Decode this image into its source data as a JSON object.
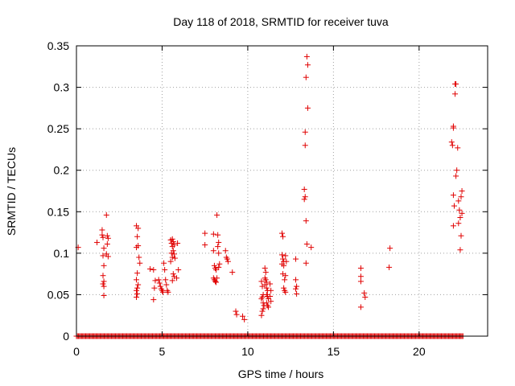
{
  "chart_data": {
    "type": "scatter",
    "title": "Day 118 of 2018, SRMTID for receiver tuva",
    "xlabel": "GPS time / hours",
    "ylabel": "SRMTID / TECUs",
    "xlim": [
      0,
      24
    ],
    "ylim": [
      0,
      0.35
    ],
    "xticks": [
      0,
      5,
      10,
      15,
      20
    ],
    "yticks": [
      0,
      0.05,
      0.1,
      0.15,
      0.2,
      0.25,
      0.3,
      0.35
    ],
    "ytick_labels": [
      "0",
      "0.05",
      "0.1",
      "0.15",
      "0.2",
      "0.25",
      "0.3",
      "0.35"
    ],
    "grid": true,
    "marker": "+",
    "color": "#e00000",
    "baseline": {
      "from": 0.0,
      "to": 22.6,
      "step": 0.06,
      "y": 0
    },
    "points": [
      [
        0.1,
        0.107
      ],
      [
        1.2,
        0.113
      ],
      [
        1.5,
        0.128
      ],
      [
        1.5,
        0.122
      ],
      [
        1.55,
        0.119
      ],
      [
        1.6,
        0.106
      ],
      [
        1.55,
        0.097
      ],
      [
        1.6,
        0.085
      ],
      [
        1.55,
        0.073
      ],
      [
        1.6,
        0.066
      ],
      [
        1.55,
        0.063
      ],
      [
        1.6,
        0.06
      ],
      [
        1.6,
        0.049
      ],
      [
        1.75,
        0.146
      ],
      [
        1.8,
        0.121
      ],
      [
        1.85,
        0.118
      ],
      [
        1.8,
        0.111
      ],
      [
        1.75,
        0.099
      ],
      [
        1.85,
        0.096
      ],
      [
        3.5,
        0.133
      ],
      [
        3.6,
        0.13
      ],
      [
        3.55,
        0.12
      ],
      [
        3.6,
        0.109
      ],
      [
        3.5,
        0.107
      ],
      [
        3.65,
        0.095
      ],
      [
        3.7,
        0.088
      ],
      [
        3.55,
        0.076
      ],
      [
        3.5,
        0.068
      ],
      [
        3.6,
        0.062
      ],
      [
        3.55,
        0.058
      ],
      [
        3.5,
        0.055
      ],
      [
        3.55,
        0.051
      ],
      [
        3.5,
        0.047
      ],
      [
        4.3,
        0.081
      ],
      [
        4.5,
        0.08
      ],
      [
        4.6,
        0.067
      ],
      [
        4.55,
        0.058
      ],
      [
        4.5,
        0.044
      ],
      [
        4.8,
        0.068
      ],
      [
        4.85,
        0.064
      ],
      [
        4.9,
        0.06
      ],
      [
        4.95,
        0.057
      ],
      [
        5.0,
        0.055
      ],
      [
        5.05,
        0.053
      ],
      [
        5.1,
        0.088
      ],
      [
        5.15,
        0.08
      ],
      [
        5.2,
        0.068
      ],
      [
        5.25,
        0.062
      ],
      [
        5.3,
        0.055
      ],
      [
        5.35,
        0.053
      ],
      [
        5.5,
        0.116
      ],
      [
        5.55,
        0.112
      ],
      [
        5.6,
        0.108
      ],
      [
        5.55,
        0.1
      ],
      [
        5.6,
        0.095
      ],
      [
        5.5,
        0.09
      ],
      [
        5.65,
        0.075
      ],
      [
        5.7,
        0.072
      ],
      [
        5.6,
        0.067
      ],
      [
        5.6,
        0.117
      ],
      [
        5.65,
        0.114
      ],
      [
        5.7,
        0.11
      ],
      [
        5.65,
        0.103
      ],
      [
        5.7,
        0.099
      ],
      [
        5.75,
        0.094
      ],
      [
        5.9,
        0.112
      ],
      [
        5.95,
        0.08
      ],
      [
        5.85,
        0.07
      ],
      [
        7.5,
        0.124
      ],
      [
        7.5,
        0.11
      ],
      [
        8.0,
        0.123
      ],
      [
        8.0,
        0.103
      ],
      [
        8.05,
        0.085
      ],
      [
        8.1,
        0.082
      ],
      [
        8.15,
        0.08
      ],
      [
        8.0,
        0.07
      ],
      [
        8.05,
        0.068
      ],
      [
        8.1,
        0.066
      ],
      [
        8.15,
        0.065
      ],
      [
        8.2,
        0.07
      ],
      [
        8.2,
        0.146
      ],
      [
        8.25,
        0.122
      ],
      [
        8.3,
        0.113
      ],
      [
        8.25,
        0.108
      ],
      [
        8.3,
        0.1
      ],
      [
        8.35,
        0.087
      ],
      [
        8.3,
        0.083
      ],
      [
        8.7,
        0.103
      ],
      [
        8.75,
        0.095
      ],
      [
        8.8,
        0.093
      ],
      [
        8.85,
        0.09
      ],
      [
        9.1,
        0.077
      ],
      [
        9.3,
        0.03
      ],
      [
        9.35,
        0.026
      ],
      [
        9.7,
        0.024
      ],
      [
        9.8,
        0.02
      ],
      [
        10.8,
        0.066
      ],
      [
        10.85,
        0.06
      ],
      [
        10.9,
        0.05
      ],
      [
        10.85,
        0.047
      ],
      [
        10.8,
        0.045
      ],
      [
        10.9,
        0.04
      ],
      [
        10.95,
        0.037
      ],
      [
        10.9,
        0.033
      ],
      [
        10.85,
        0.03
      ],
      [
        10.8,
        0.025
      ],
      [
        11.0,
        0.082
      ],
      [
        11.05,
        0.077
      ],
      [
        11.0,
        0.07
      ],
      [
        11.05,
        0.068
      ],
      [
        11.1,
        0.065
      ],
      [
        11.0,
        0.062
      ],
      [
        11.1,
        0.058
      ],
      [
        11.15,
        0.055
      ],
      [
        11.1,
        0.05
      ],
      [
        11.15,
        0.048
      ],
      [
        11.2,
        0.045
      ],
      [
        11.1,
        0.04
      ],
      [
        11.15,
        0.037
      ],
      [
        11.2,
        0.035
      ],
      [
        11.3,
        0.063
      ],
      [
        11.35,
        0.055
      ],
      [
        11.3,
        0.048
      ],
      [
        11.35,
        0.042
      ],
      [
        12.0,
        0.124
      ],
      [
        12.05,
        0.12
      ],
      [
        12.0,
        0.098
      ],
      [
        12.05,
        0.093
      ],
      [
        12.1,
        0.09
      ],
      [
        12.0,
        0.087
      ],
      [
        12.1,
        0.085
      ],
      [
        12.05,
        0.075
      ],
      [
        12.15,
        0.068
      ],
      [
        12.1,
        0.058
      ],
      [
        12.15,
        0.055
      ],
      [
        12.2,
        0.053
      ],
      [
        12.2,
        0.097
      ],
      [
        12.25,
        0.09
      ],
      [
        12.2,
        0.073
      ],
      [
        12.8,
        0.093
      ],
      [
        12.8,
        0.068
      ],
      [
        12.85,
        0.06
      ],
      [
        12.8,
        0.057
      ],
      [
        12.85,
        0.051
      ],
      [
        13.3,
        0.177
      ],
      [
        13.35,
        0.168
      ],
      [
        13.3,
        0.165
      ],
      [
        13.4,
        0.139
      ],
      [
        13.35,
        0.246
      ],
      [
        13.35,
        0.23
      ],
      [
        13.45,
        0.337
      ],
      [
        13.5,
        0.327
      ],
      [
        13.4,
        0.312
      ],
      [
        13.5,
        0.275
      ],
      [
        13.45,
        0.111
      ],
      [
        13.4,
        0.088
      ],
      [
        13.7,
        0.107
      ],
      [
        16.6,
        0.082
      ],
      [
        16.6,
        0.072
      ],
      [
        16.6,
        0.066
      ],
      [
        16.8,
        0.052
      ],
      [
        16.85,
        0.047
      ],
      [
        16.6,
        0.035
      ],
      [
        18.3,
        0.106
      ],
      [
        18.25,
        0.083
      ],
      [
        21.9,
        0.234
      ],
      [
        21.95,
        0.23
      ],
      [
        22.0,
        0.253
      ],
      [
        22.0,
        0.251
      ],
      [
        22.1,
        0.304
      ],
      [
        22.15,
        0.304
      ],
      [
        22.1,
        0.292
      ],
      [
        22.2,
        0.2
      ],
      [
        22.15,
        0.193
      ],
      [
        22.25,
        0.227
      ],
      [
        22.0,
        0.17
      ],
      [
        22.05,
        0.157
      ],
      [
        22.0,
        0.133
      ],
      [
        22.3,
        0.163
      ],
      [
        22.35,
        0.152
      ],
      [
        22.3,
        0.136
      ],
      [
        22.5,
        0.175
      ],
      [
        22.45,
        0.168
      ],
      [
        22.5,
        0.148
      ],
      [
        22.4,
        0.143
      ],
      [
        22.45,
        0.121
      ],
      [
        22.4,
        0.104
      ]
    ]
  }
}
